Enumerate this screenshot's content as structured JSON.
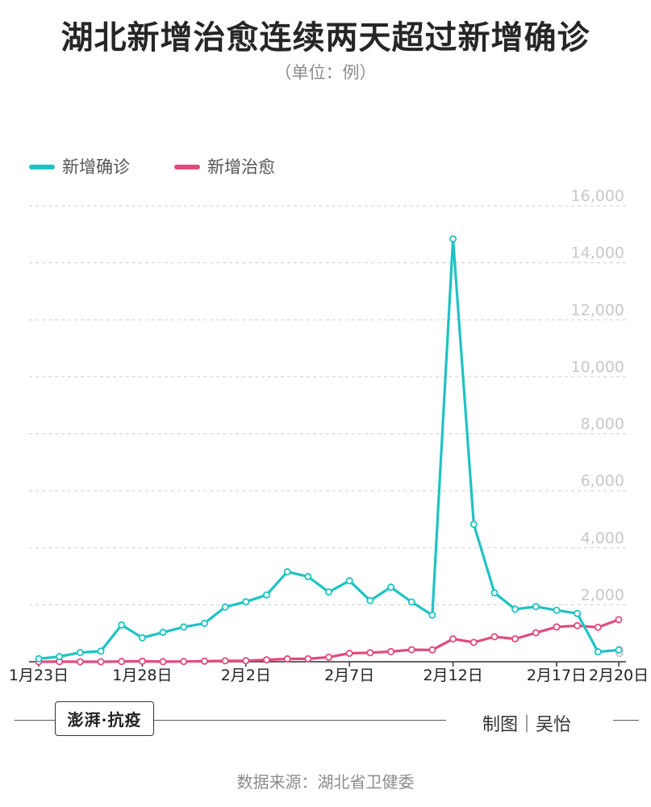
{
  "header": {
    "title": "湖北新增治愈连续两天超过新增确诊",
    "subtitle": "（单位：例）"
  },
  "legend": [
    {
      "label": "新增确诊",
      "color": "#1ec3c3"
    },
    {
      "label": "新增治愈",
      "color": "#e24a7e"
    }
  ],
  "chart_data": {
    "type": "line",
    "title": "湖北新增治愈连续两天超过新增确诊",
    "ylim": [
      0,
      16000
    ],
    "y_ticks": [
      0,
      2000,
      4000,
      6000,
      8000,
      10000,
      12000,
      14000,
      16000
    ],
    "y_tick_labels": [
      "0",
      "2,000",
      "4,000",
      "6,000",
      "8,000",
      "10,000",
      "12,000",
      "14,000",
      "16,000"
    ],
    "x": [
      "1月23日",
      "1月24日",
      "1月25日",
      "1月26日",
      "1月27日",
      "1月28日",
      "1月29日",
      "1月30日",
      "1月31日",
      "2月1日",
      "2月2日",
      "2月3日",
      "2月4日",
      "2月5日",
      "2月6日",
      "2月7日",
      "2月8日",
      "2月9日",
      "2月10日",
      "2月11日",
      "2月12日",
      "2月13日",
      "2月14日",
      "2月15日",
      "2月16日",
      "2月17日",
      "2月18日",
      "2月19日",
      "2月20日"
    ],
    "x_tick_labels": [
      {
        "index": 0,
        "label": "1月23日"
      },
      {
        "index": 5,
        "label": "1月28日"
      },
      {
        "index": 10,
        "label": "2月2日"
      },
      {
        "index": 15,
        "label": "2月7日"
      },
      {
        "index": 20,
        "label": "2月12日"
      },
      {
        "index": 25,
        "label": "2月17日"
      },
      {
        "index": 28,
        "label": "2月20日"
      }
    ],
    "grid": true,
    "legend_position": "top-left",
    "series": [
      {
        "name": "新增确诊",
        "color": "#1ec3c3",
        "values": [
          105,
          180,
          323,
          371,
          1291,
          840,
          1032,
          1220,
          1347,
          1921,
          2103,
          2345,
          3156,
          2987,
          2447,
          2841,
          2147,
          2618,
          2097,
          1638,
          14840,
          4823,
          2420,
          1843,
          1933,
          1807,
          1693,
          349,
          411
        ]
      },
      {
        "name": "新增治愈",
        "color": "#e24a7e",
        "values": [
          0,
          4,
          0,
          0,
          9,
          18,
          2,
          9,
          21,
          32,
          38,
          67,
          101,
          103,
          161,
          297,
          316,
          356,
          423,
          417,
          802,
          680,
          878,
          804,
          1016,
          1223,
          1266,
          1209,
          1477
        ]
      }
    ]
  },
  "footer": {
    "stamp": "澎湃·抗疫",
    "credit": "制图｜吴怡",
    "source": "数据来源：湖北省卫健委"
  }
}
